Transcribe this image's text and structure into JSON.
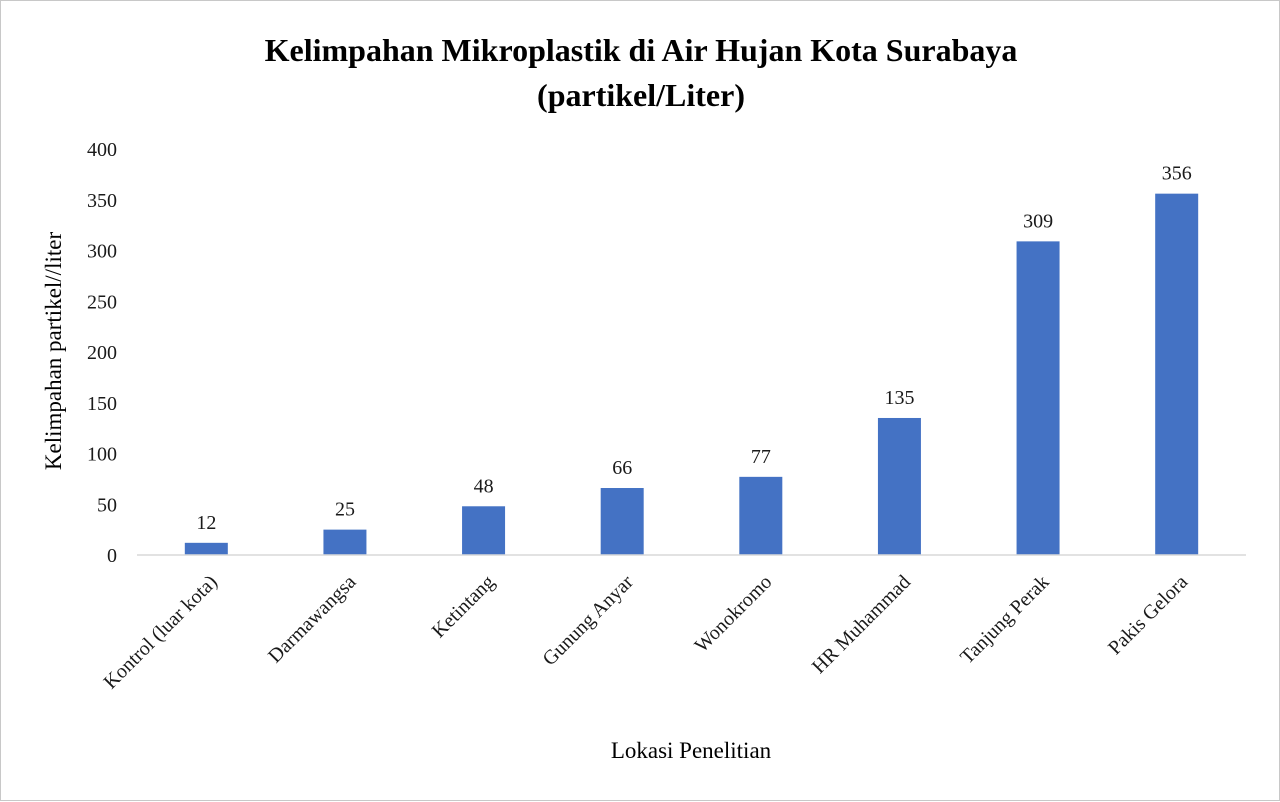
{
  "chart_data": {
    "type": "bar",
    "title": [
      "Kelimpahan Mikroplastik  di Air Hujan Kota Surabaya",
      "(partikel/Liter)"
    ],
    "xlabel": "Lokasi Penelitian",
    "ylabel": "Kelimpahan partikel//liter",
    "categories": [
      "Kontrol (luar kota)",
      "Darmawangsa",
      "Ketintang",
      "Gunung Anyar",
      "Wonokromo",
      "HR Muhammad",
      "Tanjung Perak",
      "Pakis Gelora"
    ],
    "values": [
      12,
      25,
      48,
      66,
      77,
      135,
      309,
      356
    ],
    "data_labels": [
      "12",
      "25",
      "48",
      "66",
      "77",
      "135",
      "309",
      "356"
    ],
    "ylim": [
      0,
      400
    ],
    "yticks": [
      "0",
      "50",
      "100",
      "150",
      "200",
      "250",
      "300",
      "350",
      "400"
    ],
    "grid": false,
    "legend": "none",
    "colors": {
      "bar": "#4472C4",
      "axis": "#d9d9d9"
    }
  }
}
